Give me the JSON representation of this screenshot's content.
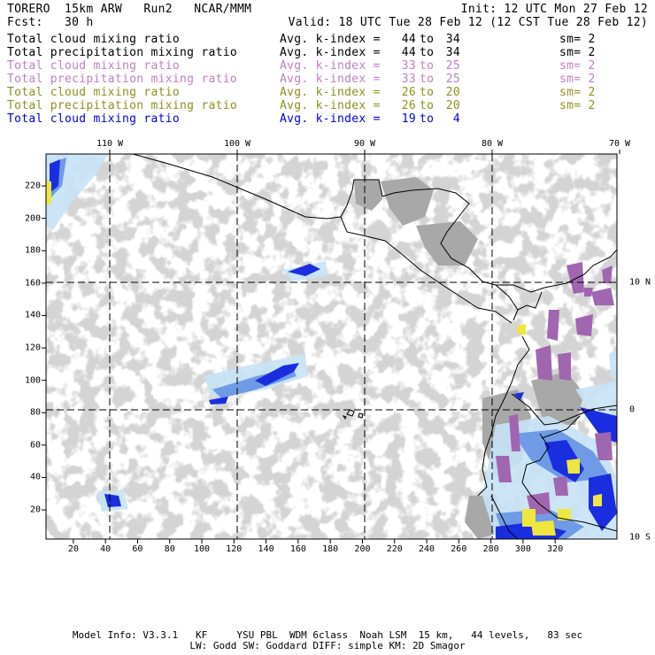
{
  "header": {
    "model": "TORERO  15km ARW   Run2   NCAR/MMM",
    "init": "Init: 12 UTC Mon 27 Feb 12",
    "forecast": "Fcst:   30 h",
    "valid": "Valid: 18 UTC Tue 28 Feb 12 (12 CST Tue 28 Feb 12)"
  },
  "legend": [
    {
      "field": "Total cloud mixing ratio",
      "kindex_label": "Avg. k-index =",
      "from": "44",
      "to_word": "to",
      "to": "34",
      "smooth": "sm= 2",
      "color": "#000000"
    },
    {
      "field": "Total precipitation mixing ratio",
      "kindex_label": "Avg. k-index =",
      "from": "44",
      "to_word": "to",
      "to": "34",
      "smooth": "sm= 2",
      "color": "#000000"
    },
    {
      "field": "Total cloud mixing ratio",
      "kindex_label": "Avg. k-index =",
      "from": "33",
      "to_word": "to",
      "to": "25",
      "smooth": "sm= 2",
      "color": "#c080c0"
    },
    {
      "field": "Total precipitation mixing ratio",
      "kindex_label": "Avg. k-index =",
      "from": "33",
      "to_word": "to",
      "to": "25",
      "smooth": "sm= 2",
      "color": "#c080c0"
    },
    {
      "field": "Total cloud mixing ratio",
      "kindex_label": "Avg. k-index =",
      "from": "26",
      "to_word": "to",
      "to": "20",
      "smooth": "sm= 2",
      "color": "#909020"
    },
    {
      "field": "Total precipitation mixing ratio",
      "kindex_label": "Avg. k-index =",
      "from": "26",
      "to_word": "to",
      "to": "20",
      "smooth": "sm= 2",
      "color": "#909020"
    },
    {
      "field": "Total cloud mixing ratio",
      "kindex_label": "Avg. k-index =",
      "from": "19",
      "to_word": "to",
      "to": "4",
      "smooth": "",
      "color": "#0000e0"
    }
  ],
  "map": {
    "x_grid_ticks": [
      "20",
      "40",
      "60",
      "80",
      "100",
      "120",
      "140",
      "160",
      "180",
      "200",
      "220",
      "240",
      "260",
      "280",
      "300",
      "320"
    ],
    "y_grid_ticks": [
      "20",
      "40",
      "60",
      "80",
      "100",
      "120",
      "140",
      "160",
      "180",
      "200",
      "220"
    ],
    "lon_labels": [
      "110 W",
      "100 W",
      "90 W",
      "80 W",
      "70 W"
    ],
    "lat_labels": [
      "10 N",
      "0",
      "10 S"
    ],
    "colors": {
      "cloud_gray": "#a8a8a8",
      "light_blue": "#c6e2f6",
      "mid_blue": "#6f9be6",
      "deep_blue": "#1a2ee0",
      "purple": "#a066b0",
      "yellow": "#f0e640",
      "coast": "#000000"
    }
  },
  "footer": {
    "line1": "Model Info: V3.3.1   KF     YSU PBL  WDM 6class  Noah LSM  15 km,   44 levels,   83 sec",
    "line2": "LW: Godd SW: Goddard DIFF: simple KM: 2D Smagor"
  }
}
